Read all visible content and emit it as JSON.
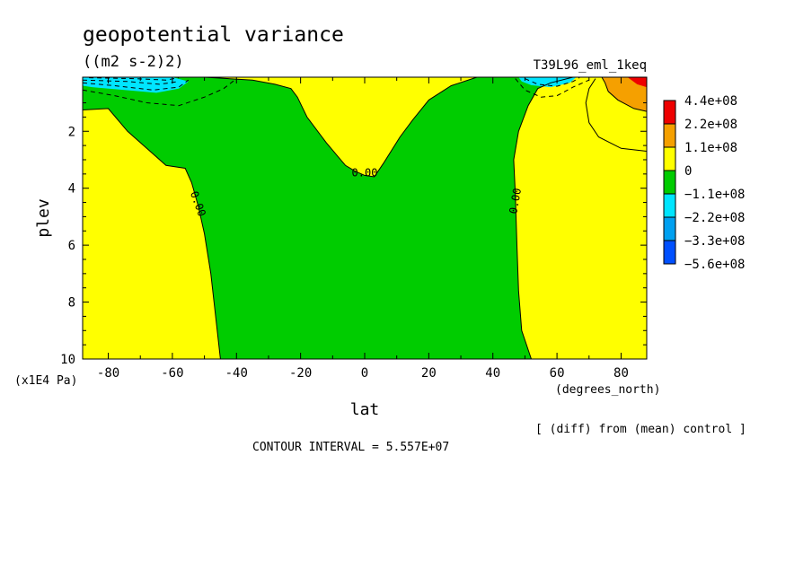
{
  "chart_data": {
    "type": "contour",
    "title": "geopotential variance",
    "units": "((m2 s-2)2)",
    "run_label": "T39L96_eml_1keq",
    "xlabel": "lat",
    "x_units": "(degrees_north)",
    "ylabel": "plev",
    "y_units": "(x1E4 Pa)",
    "xlim": [
      -88,
      88
    ],
    "ylim": [
      10,
      0.1
    ],
    "x_ticks": [
      -80,
      -60,
      -40,
      -20,
      0,
      20,
      40,
      60,
      80
    ],
    "x_tick_labels": [
      "-80",
      "-60",
      "-40",
      "-20",
      "0",
      "20",
      "40",
      "60",
      "80"
    ],
    "y_ticks": [
      2,
      4,
      6,
      8,
      10
    ],
    "y_tick_labels": [
      "2",
      "4",
      "6",
      "8",
      "10"
    ],
    "colorbar": {
      "labels": [
        "4.4e+08",
        "2.2e+08",
        "1.1e+08",
        "0",
        "−1.1e+08",
        "−2.2e+08",
        "−3.3e+08",
        "−5.6e+08"
      ],
      "colors": [
        "#ee0000",
        "#f5a000",
        "#ffff00",
        "#00cc00",
        "#00e5ff",
        "#00a0f0",
        "#0050ff"
      ]
    },
    "contour_labels": [
      {
        "text": "0.00",
        "lat": -52,
        "plev": 4.55,
        "rotate": 70
      },
      {
        "text": "0.00",
        "lat": 0,
        "plev": 3.45,
        "rotate": 0
      },
      {
        "text": "0.00",
        "lat": 47,
        "plev": 4.45,
        "rotate": -80
      }
    ],
    "regions": [
      {
        "name": "negative-zone",
        "fill": "#00cc00",
        "boundary": [
          [
            -88,
            1.25
          ],
          [
            -80,
            1.2
          ],
          [
            -74,
            2.0
          ],
          [
            -68,
            2.6
          ],
          [
            -62,
            3.2
          ],
          [
            -56,
            3.3
          ],
          [
            -54,
            3.8
          ],
          [
            -52,
            4.6
          ],
          [
            -50,
            5.6
          ],
          [
            -48,
            7.0
          ],
          [
            -47,
            8.0
          ],
          [
            -45,
            10
          ],
          [
            52,
            10
          ],
          [
            49,
            9
          ],
          [
            48,
            7.6
          ],
          [
            47.5,
            6
          ],
          [
            47,
            4.2
          ],
          [
            46.5,
            3.0
          ],
          [
            48,
            2.0
          ],
          [
            51,
            1.1
          ],
          [
            54,
            0.5
          ],
          [
            58,
            0.3
          ],
          [
            65,
            0.1
          ],
          [
            35,
            0.1
          ],
          [
            27,
            0.4
          ],
          [
            20,
            0.9
          ],
          [
            15,
            1.6
          ],
          [
            11,
            2.2
          ],
          [
            6,
            3.1
          ],
          [
            3,
            3.6
          ],
          [
            0,
            3.55
          ],
          [
            -3,
            3.4
          ],
          [
            -6,
            3.2
          ],
          [
            -12,
            2.4
          ],
          [
            -18,
            1.5
          ],
          [
            -21,
            0.8
          ],
          [
            -23,
            0.5
          ],
          [
            -28,
            0.35
          ],
          [
            -35,
            0.2
          ],
          [
            -50,
            0.1
          ],
          [
            -88,
            0.1
          ]
        ]
      },
      {
        "name": "cyan-left",
        "fill": "#00e5ff",
        "boundary": [
          [
            -88,
            0.1
          ],
          [
            -60,
            0.1
          ],
          [
            -55,
            0.25
          ],
          [
            -58,
            0.5
          ],
          [
            -65,
            0.65
          ],
          [
            -75,
            0.55
          ],
          [
            -85,
            0.45
          ],
          [
            -88,
            0.4
          ]
        ]
      },
      {
        "name": "cyan-right",
        "fill": "#00e5ff",
        "boundary": [
          [
            48,
            0.1
          ],
          [
            66,
            0.1
          ],
          [
            64,
            0.3
          ],
          [
            58,
            0.45
          ],
          [
            52,
            0.38
          ],
          [
            49,
            0.25
          ]
        ]
      },
      {
        "name": "orange-right",
        "fill": "#f5a000",
        "boundary": [
          [
            74,
            0.1
          ],
          [
            88,
            0.1
          ],
          [
            88,
            1.3
          ],
          [
            84,
            1.2
          ],
          [
            79,
            0.9
          ],
          [
            76,
            0.6
          ],
          [
            75,
            0.3
          ]
        ]
      },
      {
        "name": "red-right",
        "fill": "#ee0000",
        "boundary": [
          [
            82,
            0.1
          ],
          [
            88,
            0.1
          ],
          [
            88,
            0.45
          ],
          [
            85,
            0.35
          ]
        ]
      }
    ],
    "contour_lines": [
      {
        "name": "zero-contour-west",
        "dash": "",
        "points": [
          [
            -88,
            1.25
          ],
          [
            -80,
            1.2
          ],
          [
            -74,
            2.0
          ],
          [
            -68,
            2.6
          ],
          [
            -62,
            3.2
          ],
          [
            -56,
            3.3
          ],
          [
            -54,
            3.8
          ],
          [
            -52,
            4.6
          ],
          [
            -50,
            5.6
          ],
          [
            -48,
            7.0
          ],
          [
            -47,
            8.0
          ],
          [
            -45,
            10
          ]
        ]
      },
      {
        "name": "zero-contour-east",
        "dash": "",
        "points": [
          [
            52,
            10
          ],
          [
            49,
            9
          ],
          [
            48,
            7.6
          ],
          [
            47.5,
            6
          ],
          [
            47,
            4.2
          ],
          [
            46.5,
            3.0
          ],
          [
            48,
            2.0
          ],
          [
            51,
            1.1
          ],
          [
            54,
            0.5
          ],
          [
            58,
            0.3
          ],
          [
            65,
            0.1
          ]
        ]
      },
      {
        "name": "zero-contour-center",
        "dash": "",
        "points": [
          [
            35,
            0.1
          ],
          [
            27,
            0.4
          ],
          [
            20,
            0.9
          ],
          [
            15,
            1.6
          ],
          [
            11,
            2.2
          ],
          [
            6,
            3.1
          ],
          [
            3,
            3.6
          ],
          [
            0,
            3.55
          ],
          [
            -3,
            3.4
          ],
          [
            -6,
            3.2
          ],
          [
            -12,
            2.4
          ],
          [
            -18,
            1.5
          ],
          [
            -21,
            0.8
          ],
          [
            -23,
            0.5
          ],
          [
            -28,
            0.35
          ],
          [
            -35,
            0.2
          ],
          [
            -50,
            0.1
          ]
        ]
      },
      {
        "name": "neg-contour-west-1",
        "dash": "5,4",
        "points": [
          [
            -88,
            0.55
          ],
          [
            -78,
            0.75
          ],
          [
            -68,
            1.0
          ],
          [
            -58,
            1.1
          ],
          [
            -50,
            0.8
          ],
          [
            -44,
            0.5
          ],
          [
            -40,
            0.15
          ]
        ]
      },
      {
        "name": "neg-contour-west-2",
        "dash": "5,4",
        "points": [
          [
            -88,
            0.3
          ],
          [
            -78,
            0.4
          ],
          [
            -66,
            0.55
          ],
          [
            -58,
            0.45
          ],
          [
            -55,
            0.2
          ]
        ]
      },
      {
        "name": "neg-contour-west-3",
        "dash": "5,4",
        "points": [
          [
            -88,
            0.2
          ],
          [
            -74,
            0.25
          ],
          [
            -64,
            0.35
          ],
          [
            -58,
            0.25
          ]
        ]
      },
      {
        "name": "neg-contour-west-4",
        "dash": "5,4",
        "points": [
          [
            -86,
            0.12
          ],
          [
            -72,
            0.15
          ],
          [
            -62,
            0.2
          ],
          [
            -58,
            0.12
          ]
        ]
      },
      {
        "name": "neg-contour-east-1",
        "dash": "5,4",
        "points": [
          [
            47,
            0.15
          ],
          [
            50,
            0.55
          ],
          [
            55,
            0.8
          ],
          [
            60,
            0.75
          ],
          [
            65,
            0.45
          ],
          [
            70,
            0.2
          ]
        ]
      },
      {
        "name": "neg-contour-east-2",
        "dash": "5,4",
        "points": [
          [
            50,
            0.15
          ],
          [
            54,
            0.35
          ],
          [
            60,
            0.42
          ],
          [
            65,
            0.25
          ],
          [
            67,
            0.12
          ]
        ]
      },
      {
        "name": "pos-contour-east-1",
        "dash": "",
        "points": [
          [
            88,
            2.7
          ],
          [
            80,
            2.6
          ],
          [
            73,
            2.2
          ],
          [
            70,
            1.7
          ],
          [
            69,
            1.0
          ],
          [
            70,
            0.5
          ],
          [
            72,
            0.15
          ]
        ]
      },
      {
        "name": "pos-contour-east-2",
        "dash": "",
        "points": [
          [
            88,
            1.3
          ],
          [
            84,
            1.2
          ],
          [
            79,
            0.9
          ],
          [
            76,
            0.6
          ],
          [
            75,
            0.3
          ],
          [
            74,
            0.1
          ]
        ]
      }
    ],
    "annotations": {
      "contour_interval": "CONTOUR INTERVAL = 5.557E+07",
      "diff_note": "[ (diff) from (mean) control ]"
    }
  }
}
